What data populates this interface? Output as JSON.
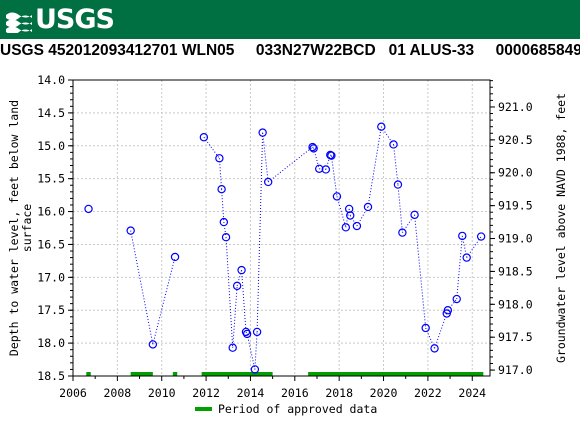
{
  "header": {
    "agency": "USGS",
    "site_title": "USGS 452012093412701 WLN05     033N27W22BCD   01 ALUS-33     0000685849"
  },
  "colors": {
    "banner": "#006f41",
    "series": "#0000ff",
    "approved": "#00a000"
  },
  "chart_data": {
    "type": "scatter",
    "title": "",
    "xlabel": "",
    "ylabel": "Depth to water level, feet below land surface",
    "y2label": "Groundwater level above NAVD 1988, feet",
    "xlim": [
      2006.0,
      2024.8
    ],
    "ylim": [
      14.0,
      18.5
    ],
    "y_inverted": true,
    "y2lim": [
      921.41,
      916.91
    ],
    "x_ticks": [
      2006,
      2008,
      2010,
      2012,
      2014,
      2016,
      2018,
      2020,
      2022,
      2024
    ],
    "x_tick_labels": [
      "2006",
      "2008",
      "2010",
      "2012",
      "2014",
      "2016",
      "2018",
      "2020",
      "2022",
      "2024"
    ],
    "y_ticks": [
      14.0,
      14.5,
      15.0,
      15.5,
      16.0,
      16.5,
      17.0,
      17.5,
      18.0,
      18.5
    ],
    "y_tick_labels": [
      "14.0",
      "14.5",
      "15.0",
      "15.5",
      "16.0",
      "16.5",
      "17.0",
      "17.5",
      "18.0",
      "18.5"
    ],
    "y2_ticks": [
      921.0,
      920.5,
      920.0,
      919.5,
      919.0,
      918.5,
      918.0,
      917.5,
      917.0
    ],
    "y2_tick_labels": [
      "921.0",
      "920.5",
      "920.0",
      "919.5",
      "919.0",
      "918.5",
      "918.0",
      "917.5",
      "917.0"
    ],
    "grid": true,
    "legend": {
      "placement": "bottom",
      "label": "Period of approved data"
    },
    "series": [
      {
        "x": [
          2006.7,
          2008.6,
          2009.6,
          2010.6,
          2011.9,
          2012.6,
          2012.7,
          2012.8,
          2012.9,
          2013.2,
          2013.4,
          2013.6,
          2013.8,
          2013.85,
          2014.2,
          2014.3,
          2014.55,
          2014.8,
          2016.8,
          2016.85,
          2017.1,
          2017.4,
          2017.6,
          2017.65,
          2017.9,
          2018.3,
          2018.45,
          2018.5,
          2018.8,
          2019.3,
          2019.9,
          2020.45,
          2020.65,
          2020.85,
          2021.4,
          2021.9,
          2022.3,
          2022.85,
          2022.9,
          2023.3,
          2023.55,
          2023.75,
          2024.4
        ],
        "y": [
          15.96,
          16.29,
          18.02,
          16.69,
          14.87,
          15.19,
          15.66,
          16.16,
          16.39,
          18.07,
          17.13,
          16.89,
          17.83,
          17.86,
          18.4,
          17.83,
          14.8,
          15.55,
          15.02,
          15.04,
          15.35,
          15.36,
          15.14,
          15.15,
          15.77,
          16.24,
          15.96,
          16.06,
          16.22,
          15.93,
          14.71,
          14.98,
          15.59,
          16.32,
          16.05,
          17.77,
          18.08,
          17.55,
          17.5,
          17.33,
          16.37,
          16.7,
          16.38
        ],
        "breaks_after": [
          0,
          3
        ]
      }
    ],
    "approved_periods": [
      [
        2006.6,
        2006.8
      ],
      [
        2008.6,
        2009.6
      ],
      [
        2010.5,
        2010.7
      ],
      [
        2011.8,
        2015.0
      ],
      [
        2016.6,
        2024.5
      ]
    ]
  }
}
